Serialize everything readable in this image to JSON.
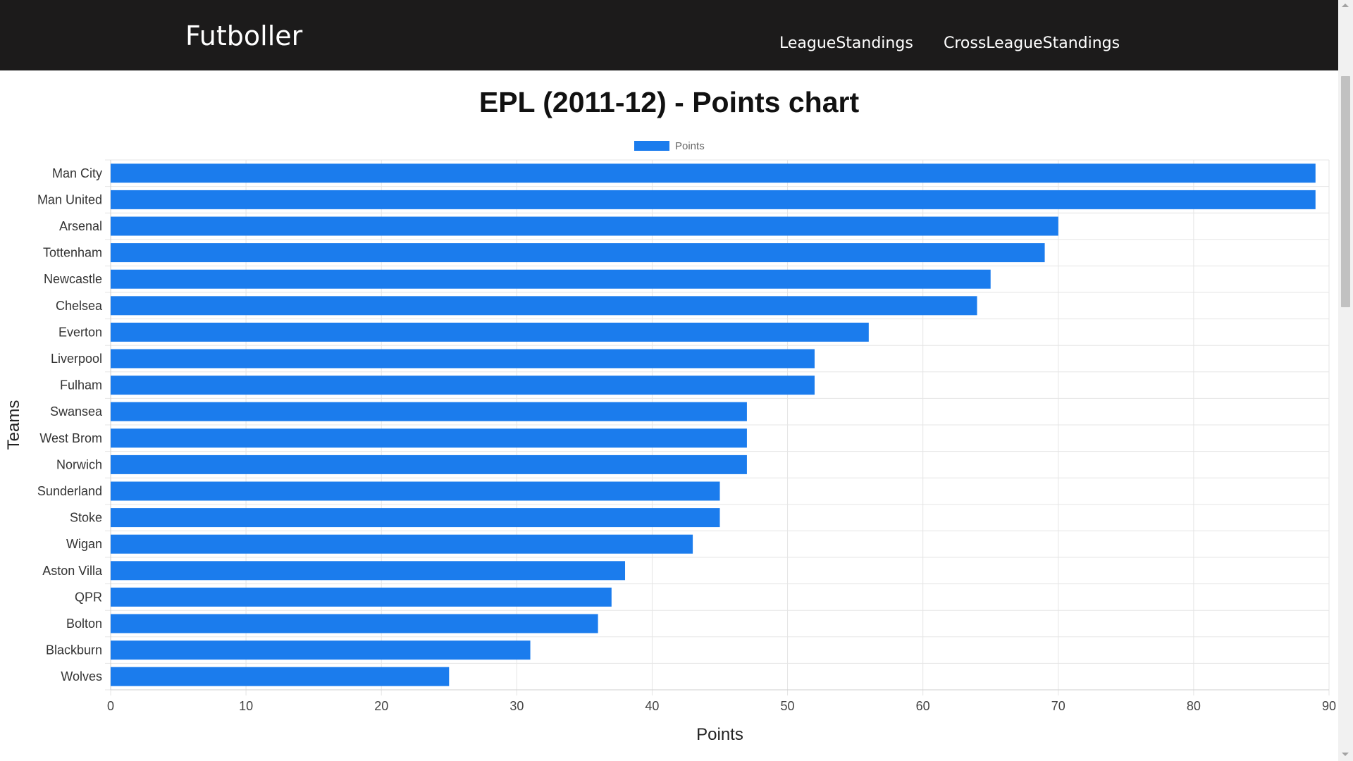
{
  "navbar": {
    "brand": "Futboller",
    "links": [
      "LeagueStandings",
      "CrossLeagueStandings"
    ]
  },
  "colors": {
    "navbar_bg": "#1c1b1b",
    "bar": "#1b7ced",
    "grid": "#e5e5e5"
  },
  "chart_data": {
    "type": "bar",
    "orientation": "horizontal",
    "title": "EPL (2011-12) - Points chart",
    "xlabel": "Points",
    "ylabel": "Teams",
    "legend": {
      "position": "top",
      "entries": [
        "Points"
      ]
    },
    "grid": true,
    "xlim": [
      0,
      90
    ],
    "xticks": [
      "0",
      "10",
      "20",
      "30",
      "40",
      "50",
      "60",
      "70",
      "80",
      "90"
    ],
    "categories": [
      "Man City",
      "Man United",
      "Arsenal",
      "Tottenham",
      "Newcastle",
      "Chelsea",
      "Everton",
      "Liverpool",
      "Fulham",
      "Swansea",
      "West Brom",
      "Norwich",
      "Sunderland",
      "Stoke",
      "Wigan",
      "Aston Villa",
      "QPR",
      "Bolton",
      "Blackburn",
      "Wolves"
    ],
    "series": [
      {
        "name": "Points",
        "values": [
          89,
          89,
          70,
          69,
          65,
          64,
          56,
          52,
          52,
          47,
          47,
          47,
          45,
          45,
          43,
          38,
          37,
          36,
          31,
          25
        ]
      }
    ]
  }
}
